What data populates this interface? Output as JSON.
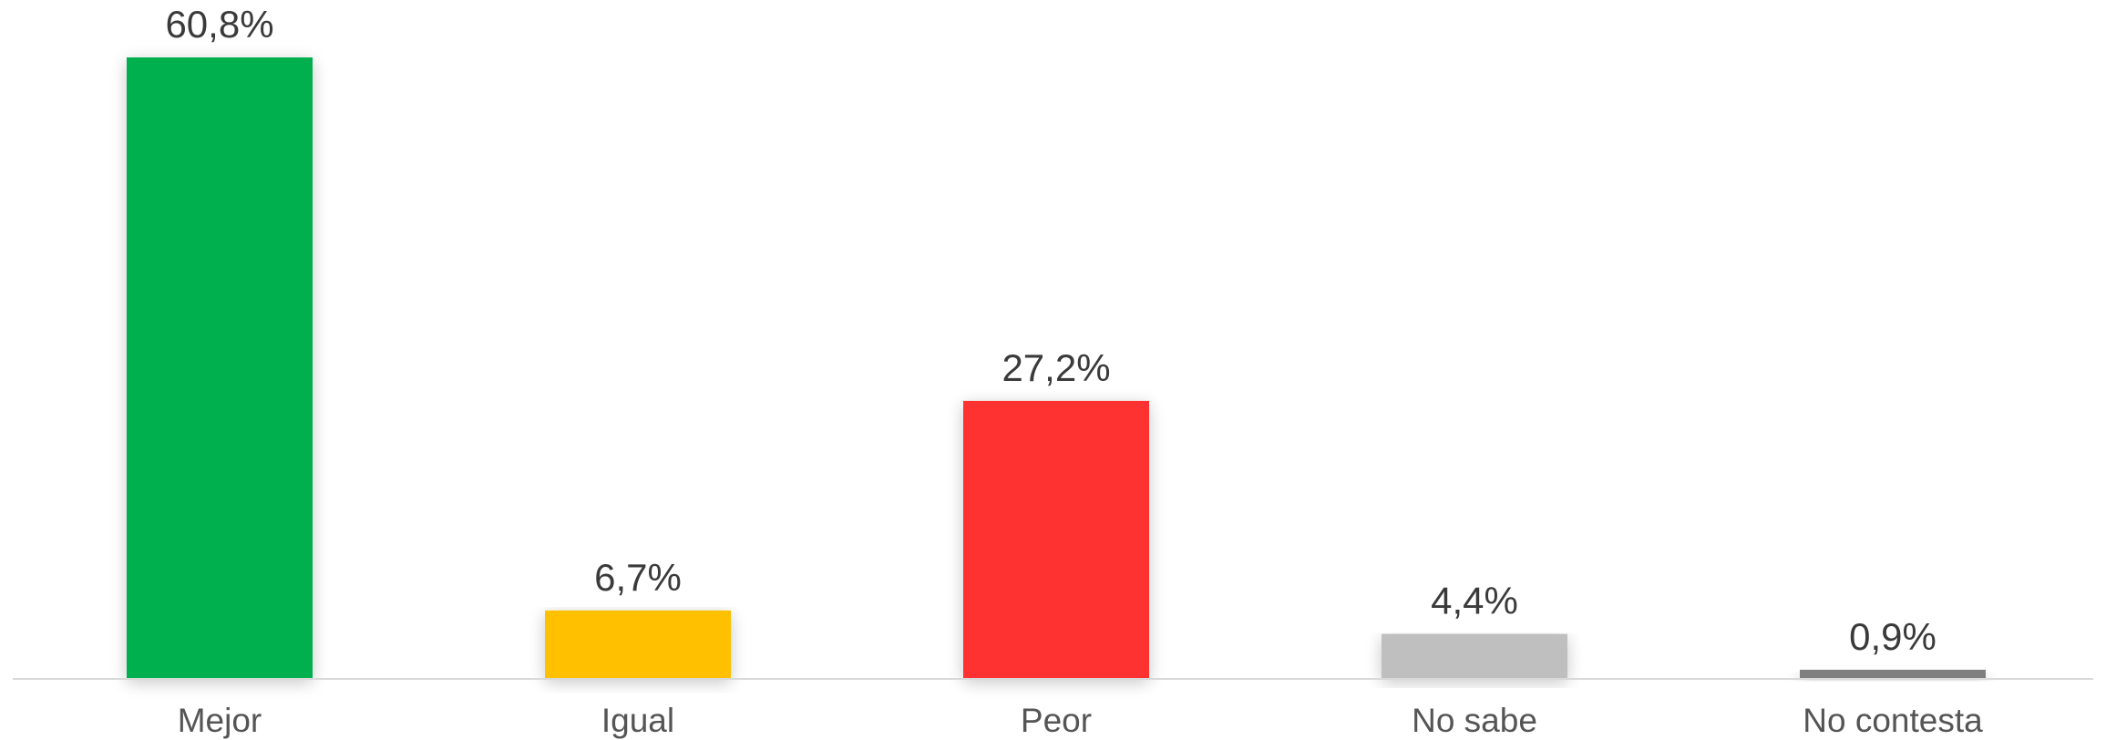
{
  "chart_data": {
    "type": "bar",
    "categories": [
      "Mejor",
      "Igual",
      "Peor",
      "No sabe",
      "No contesta"
    ],
    "values": [
      60.8,
      6.7,
      27.2,
      4.4,
      0.9
    ],
    "value_labels": [
      "60,8%",
      "6,7%",
      "27,2%",
      "4,4%",
      "0,9%"
    ],
    "colors": [
      "#00AF4D",
      "#FFC000",
      "#FF3131",
      "#BFBFBF",
      "#7F7F7F"
    ],
    "ylim": [
      0,
      60.8
    ],
    "grid": false,
    "legend": "none",
    "title": "",
    "xlabel": "",
    "ylabel": ""
  }
}
